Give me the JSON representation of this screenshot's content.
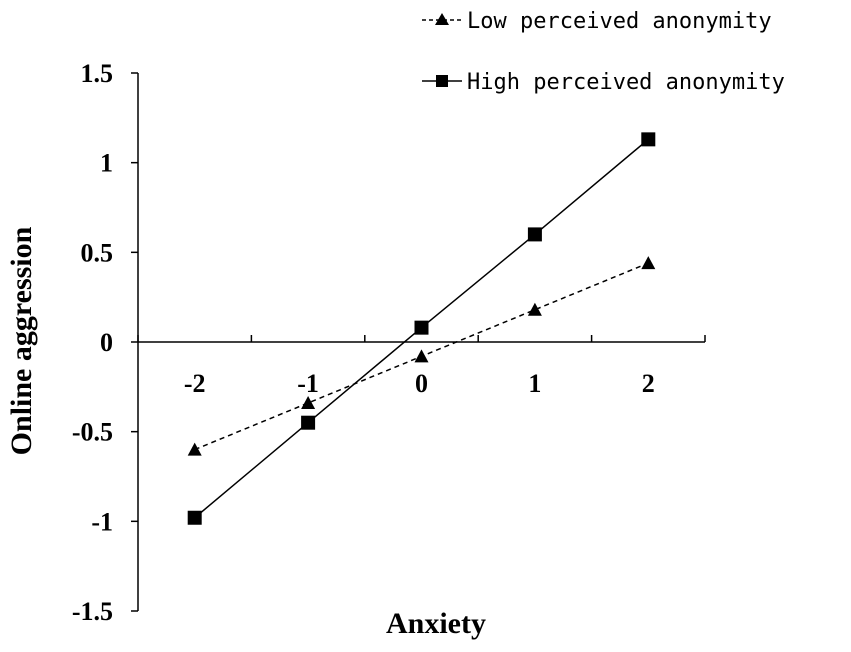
{
  "chart_data": {
    "type": "line",
    "xlabel": "Anxiety",
    "ylabel": "Online aggression",
    "x": [
      -2,
      -1,
      0,
      1,
      2
    ],
    "x_tick_labels": [
      "-2",
      "-1",
      "0",
      "1",
      "2"
    ],
    "y_tick_values": [
      1.5,
      1,
      0.5,
      0,
      -0.5,
      -1,
      -1.5
    ],
    "y_tick_labels": [
      "1.5",
      "1",
      "0.5",
      "0",
      "-0.5",
      "-1",
      "-1.5"
    ],
    "xlim": [
      -2.5,
      2.5
    ],
    "ylim": [
      -1.5,
      1.5
    ],
    "grid": false,
    "legend_position": "top-right",
    "series": [
      {
        "name": "Low perceived anonymity",
        "values": [
          -0.6,
          -0.34,
          -0.08,
          0.18,
          0.44
        ],
        "marker": "triangle",
        "line_style": "dashed",
        "color": "#000000"
      },
      {
        "name": "High perceived anonymity",
        "values": [
          -0.98,
          -0.45,
          0.08,
          0.6,
          1.13
        ],
        "marker": "square",
        "line_style": "solid",
        "color": "#000000"
      }
    ]
  }
}
